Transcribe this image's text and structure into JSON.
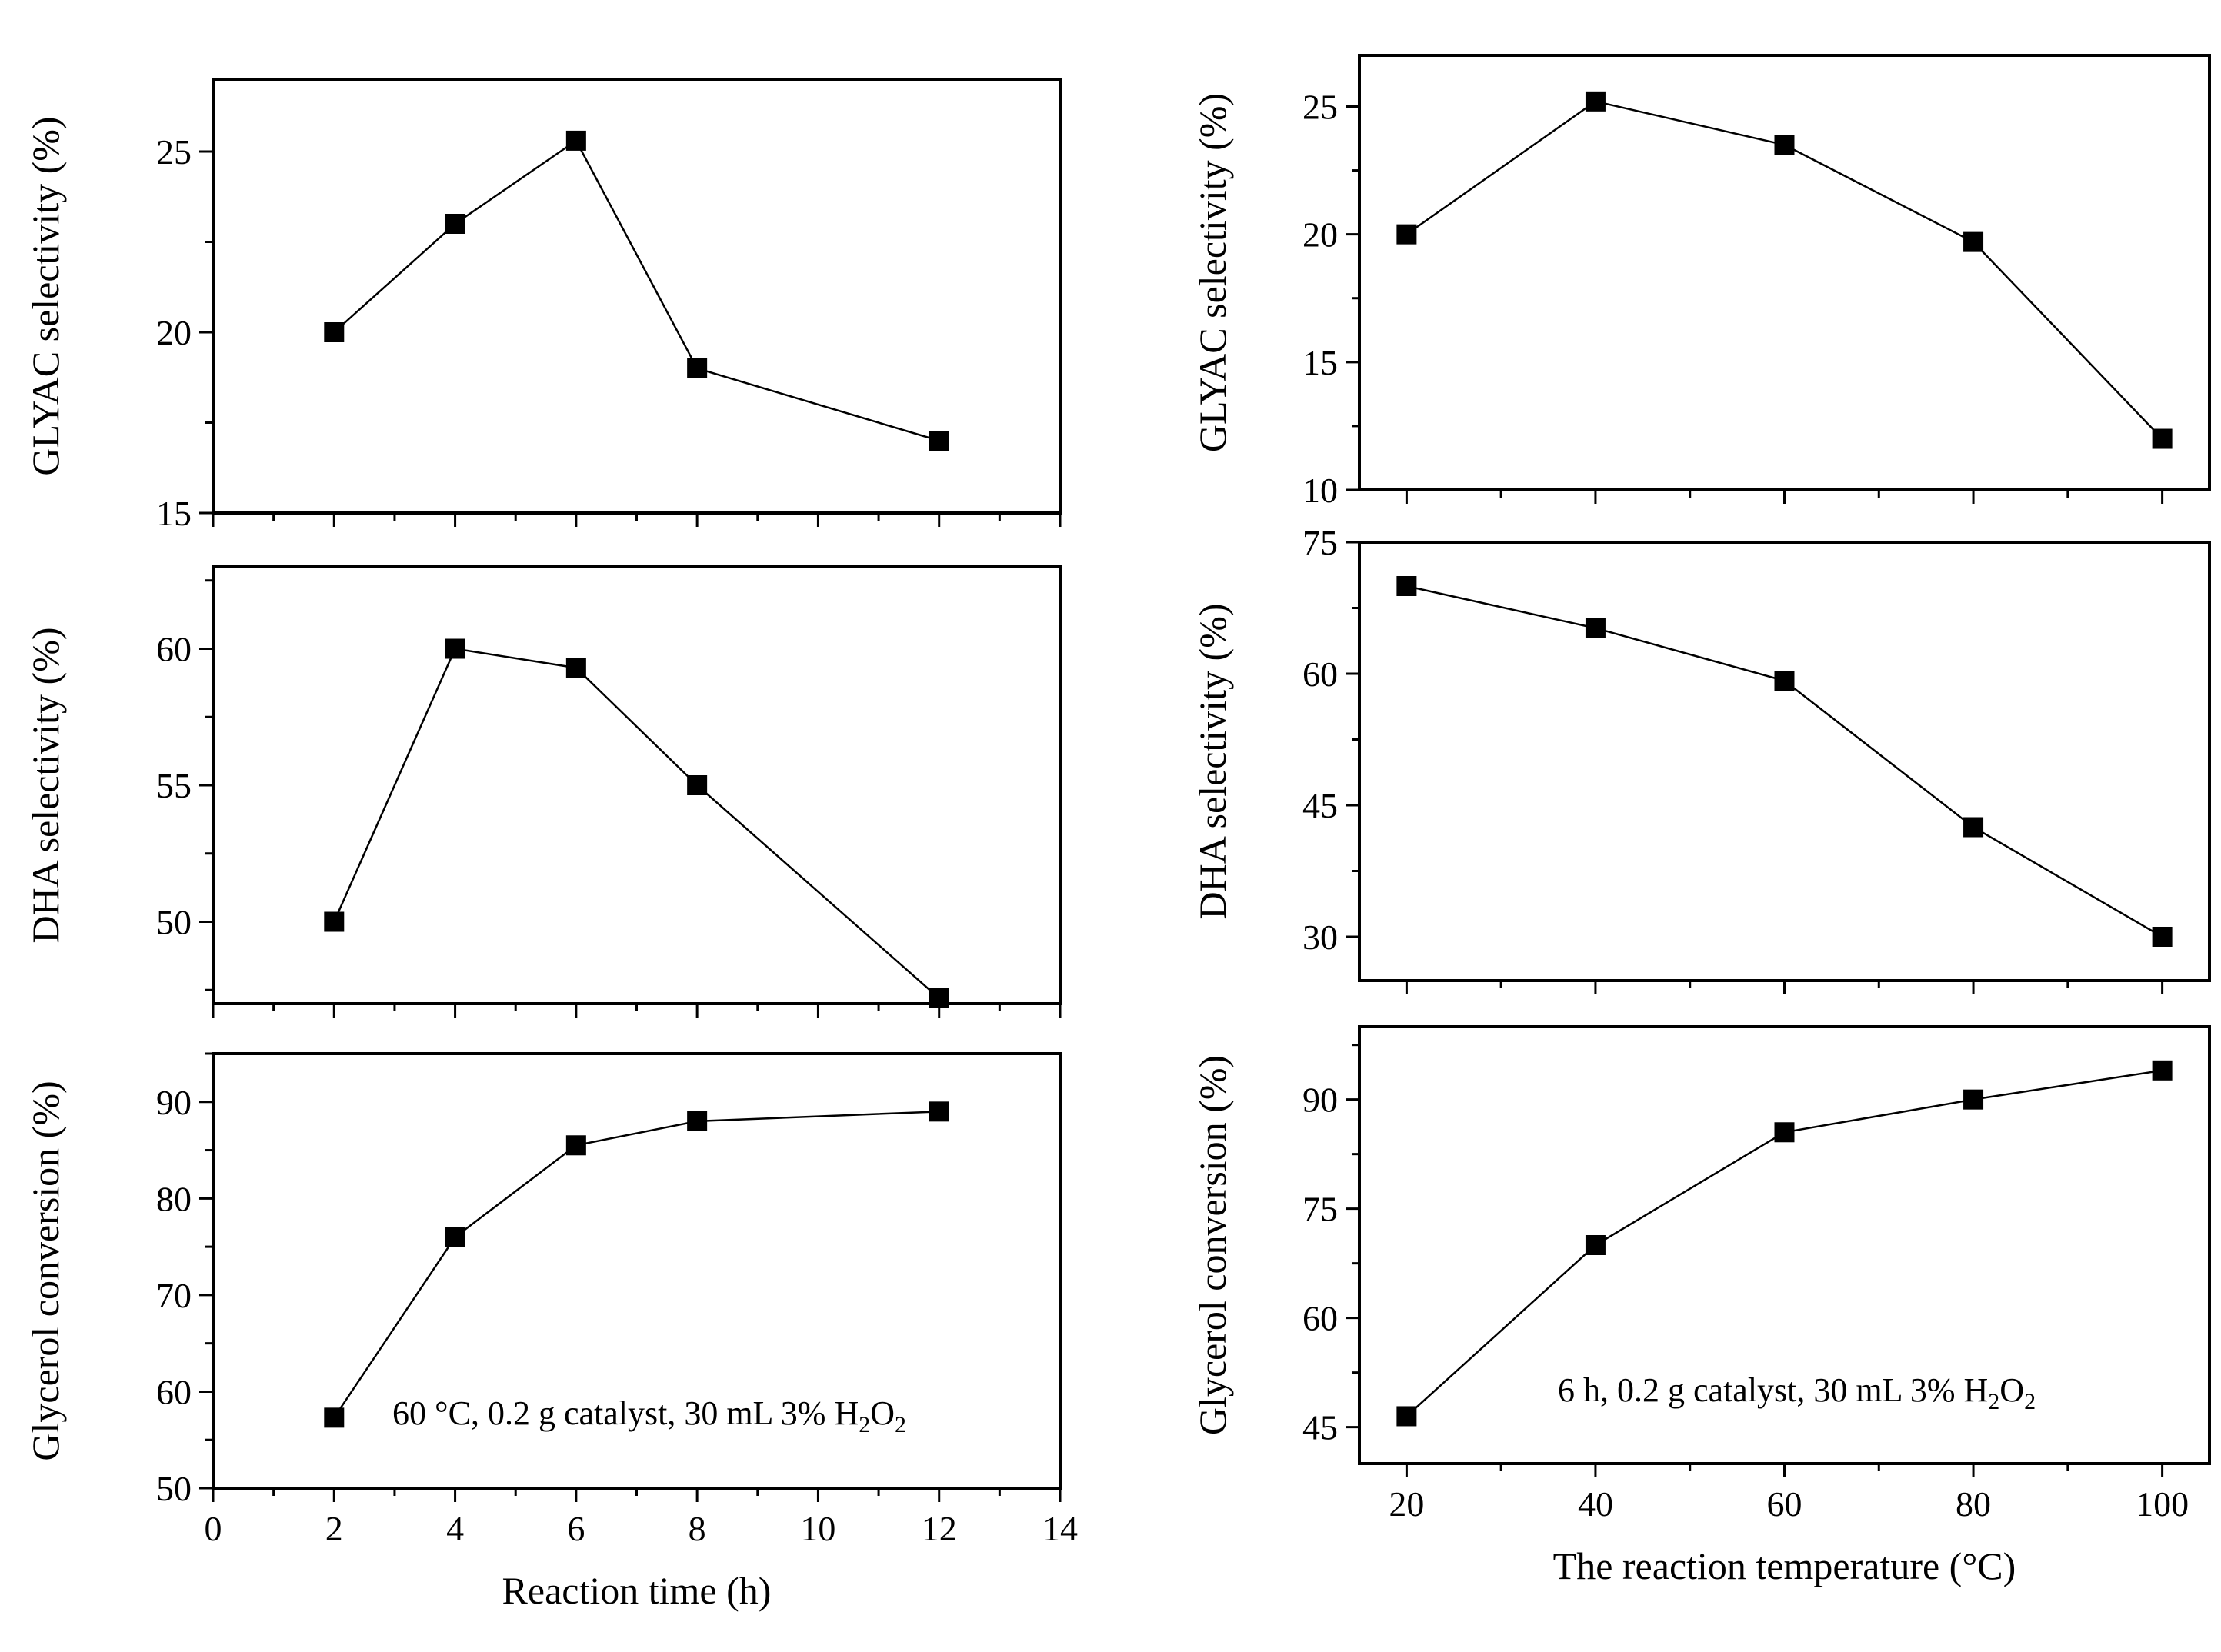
{
  "chart_data": [
    {
      "id": "left-top",
      "type": "line",
      "ylabel": "GLYAC selectivity (%)",
      "xlabel": "",
      "xlim": [
        0,
        14
      ],
      "ylim": [
        15,
        27
      ],
      "yticks": [
        "15",
        "20",
        "25"
      ],
      "yticks_values": [
        15,
        20,
        25
      ],
      "x": [
        2,
        4,
        6,
        8,
        12
      ],
      "values": [
        20.0,
        23.0,
        25.3,
        19.0,
        17.0
      ]
    },
    {
      "id": "left-middle",
      "type": "line",
      "ylabel": "DHA selectivity (%)",
      "xlabel": "",
      "xlim": [
        0,
        14
      ],
      "ylim": [
        47,
        63
      ],
      "yticks": [
        "50",
        "55",
        "60"
      ],
      "yticks_values": [
        50,
        55,
        60
      ],
      "x": [
        2,
        4,
        6,
        8,
        12
      ],
      "values": [
        50.0,
        60.0,
        59.3,
        55.0,
        47.2
      ]
    },
    {
      "id": "left-bottom",
      "type": "line",
      "ylabel": "Glycerol conversion (%)",
      "xlabel": "Reaction time (h)",
      "xlim": [
        0,
        14
      ],
      "ylim": [
        50,
        95
      ],
      "xticks": [
        "0",
        "2",
        "4",
        "6",
        "8",
        "10",
        "12",
        "14"
      ],
      "xticks_values": [
        0,
        2,
        4,
        6,
        8,
        10,
        12,
        14
      ],
      "yticks": [
        "50",
        "60",
        "70",
        "80",
        "90"
      ],
      "yticks_values": [
        50,
        60,
        70,
        80,
        90
      ],
      "x": [
        2,
        4,
        6,
        8,
        12
      ],
      "values": [
        57.3,
        76.0,
        85.5,
        88.0,
        89.0
      ],
      "annotation": {
        "main": "60 °C,  0.2 g catalyst, 30 mL 3% H",
        "sub1": "2",
        "mid": "O",
        "sub2": "2"
      }
    },
    {
      "id": "right-top",
      "type": "line",
      "ylabel": "GLYAC selectivity (%)",
      "xlabel": "",
      "xlim": [
        15,
        105
      ],
      "ylim": [
        10,
        27
      ],
      "yticks": [
        "10",
        "15",
        "20",
        "25"
      ],
      "yticks_values": [
        10,
        15,
        20,
        25
      ],
      "x": [
        20,
        40,
        60,
        80,
        100
      ],
      "values": [
        20.0,
        25.2,
        23.5,
        19.7,
        12.0
      ]
    },
    {
      "id": "right-middle",
      "type": "line",
      "ylabel": "DHA selectivity (%)",
      "xlabel": "",
      "xlim": [
        15,
        105
      ],
      "ylim": [
        25,
        75
      ],
      "yticks": [
        "30",
        "45",
        "60",
        "75"
      ],
      "yticks_values": [
        30,
        45,
        60,
        75
      ],
      "x": [
        20,
        40,
        60,
        80,
        100
      ],
      "values": [
        70.0,
        65.2,
        59.2,
        42.5,
        30.0
      ]
    },
    {
      "id": "right-bottom",
      "type": "line",
      "ylabel": "Glycerol conversion (%)",
      "xlabel": "The reaction temperature (°C)",
      "xlim": [
        15,
        105
      ],
      "ylim": [
        40,
        100
      ],
      "xticks": [
        "20",
        "40",
        "60",
        "80",
        "100"
      ],
      "xticks_values": [
        20,
        40,
        60,
        80,
        100
      ],
      "yticks": [
        "45",
        "60",
        "75",
        "90"
      ],
      "yticks_values": [
        45,
        60,
        75,
        90
      ],
      "x": [
        20,
        40,
        60,
        80,
        100
      ],
      "values": [
        46.5,
        70.0,
        85.5,
        90.0,
        94.0
      ],
      "annotation": {
        "main": "6 h, 0.2 g catalyst, 30 mL 3% H",
        "sub1": "2",
        "mid": "O",
        "sub2": "2"
      }
    }
  ]
}
